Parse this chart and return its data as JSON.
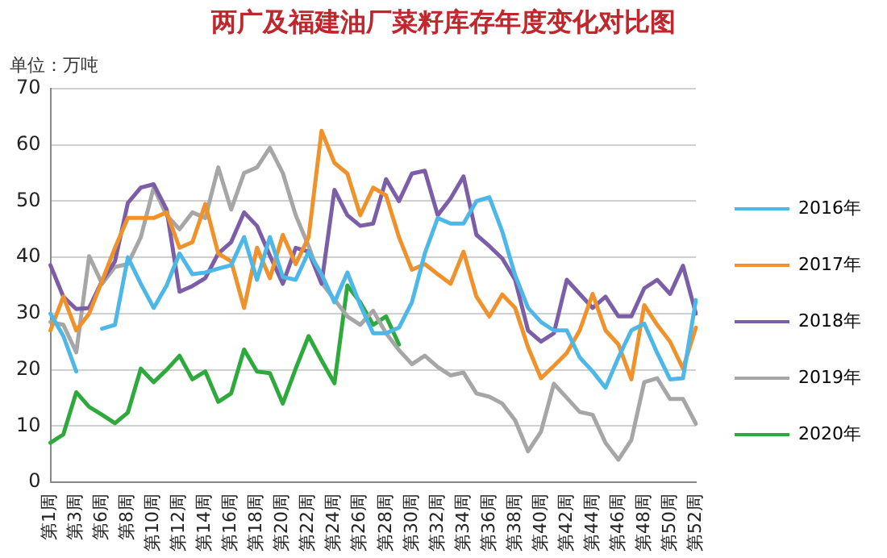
{
  "chart_data": {
    "type": "line",
    "title": "两广及福建油厂菜籽库存年度变化对比图",
    "ylabel": "单位：万吨",
    "categories": [
      "第1周",
      null,
      "第3周",
      null,
      "第6周",
      null,
      "第8周",
      null,
      "第10周",
      null,
      "第12周",
      null,
      "第14周",
      null,
      "第16周",
      null,
      "第18周",
      null,
      "第20周",
      null,
      "第22周",
      null,
      "第24周",
      null,
      "第26周",
      null,
      "第28周",
      null,
      "第30周",
      null,
      "第32周",
      null,
      "第34周",
      null,
      "第36周",
      null,
      "第38周",
      null,
      "第40周",
      null,
      "第42周",
      null,
      "第44周",
      null,
      "第46周",
      null,
      "第48周",
      null,
      "第50周",
      null,
      "第52周"
    ],
    "series": [
      {
        "name": "2016年",
        "color": "#4db8e8",
        "values": [
          30,
          26,
          19.7,
          null,
          27.3,
          28,
          40,
          35.3,
          31,
          35,
          40.7,
          37,
          37.3,
          38,
          38.6,
          43.6,
          36,
          43.6,
          36.5,
          36,
          41,
          37,
          32,
          37.3,
          31.5,
          26.5,
          26.5,
          27.5,
          32,
          40.7,
          47,
          46,
          46,
          50,
          50.7,
          44.6,
          36.8,
          31,
          28.5,
          27,
          27,
          22.2,
          19.7,
          16.8,
          22.2,
          27,
          28.2,
          23,
          18.3,
          18.5,
          32.4
        ]
      },
      {
        "name": "2017年",
        "color": "#f0922b",
        "values": [
          27,
          33,
          27,
          30,
          35.8,
          41.7,
          47,
          47,
          47,
          48,
          41.7,
          42.7,
          49.5,
          40.7,
          39.3,
          31,
          41.7,
          36.3,
          44,
          38.8,
          43.6,
          62.5,
          56.8,
          54.9,
          47.5,
          52.4,
          51,
          43.6,
          37.8,
          38.8,
          37,
          35.3,
          41,
          33,
          29.5,
          33.4,
          31,
          24,
          18.5,
          20.7,
          23,
          27,
          33.5,
          27,
          24.5,
          18.3,
          31.5,
          28,
          25,
          20.2,
          27.5
        ]
      },
      {
        "name": "2018年",
        "color": "#7b5ea7",
        "values": [
          38.6,
          33,
          30.8,
          31,
          35.8,
          39.3,
          49.7,
          52.4,
          53,
          48.5,
          33.9,
          34.9,
          36.3,
          40.7,
          42.7,
          48,
          45.6,
          40.3,
          35.3,
          41.7,
          41,
          35.3,
          52,
          47.5,
          45.6,
          46,
          53.9,
          50,
          54.9,
          55.4,
          47.5,
          50.5,
          54.4,
          44,
          42,
          39.8,
          36,
          27,
          25,
          26.5,
          36,
          33.5,
          31,
          33,
          29.5,
          29.5,
          34.5,
          36,
          33.5,
          38.5,
          30
        ]
      },
      {
        "name": "2019年",
        "color": "#a6a6a6",
        "values": [
          28.5,
          28,
          23.1,
          40.2,
          35.3,
          38.3,
          38.8,
          43.6,
          52.4,
          47.5,
          45,
          48,
          47,
          56,
          48.5,
          55,
          56,
          59.5,
          55,
          47.5,
          42,
          35.5,
          32.5,
          29.5,
          28,
          30.5,
          26.5,
          23.5,
          21,
          22.5,
          20.5,
          19,
          19.5,
          15.8,
          15.2,
          14,
          11,
          5.5,
          9,
          17.5,
          15,
          12.5,
          12,
          7,
          4,
          7.5,
          17.8,
          18.5,
          14.8,
          14.8,
          10.4
        ]
      },
      {
        "name": "2020年",
        "color": "#2eaa3c",
        "values": [
          7,
          8.5,
          16,
          13.4,
          12,
          10.5,
          12.4,
          20.2,
          17.8,
          20,
          22.5,
          18.3,
          19.7,
          14.3,
          15.8,
          23.6,
          19.7,
          19.4,
          14,
          20.2,
          26,
          21.7,
          17.6,
          35,
          32,
          28,
          29.5,
          24.5,
          null,
          null,
          null,
          null,
          null,
          null,
          null,
          null,
          null,
          null,
          null,
          null,
          null,
          null,
          null,
          null,
          null,
          null,
          null,
          null,
          null,
          null,
          null
        ]
      }
    ],
    "ylim": [
      0,
      70
    ],
    "yticks": [
      0,
      10,
      20,
      30,
      40,
      50,
      60,
      70
    ],
    "grid": "y",
    "legend": "right",
    "marker": "none",
    "line_style": "solid"
  }
}
